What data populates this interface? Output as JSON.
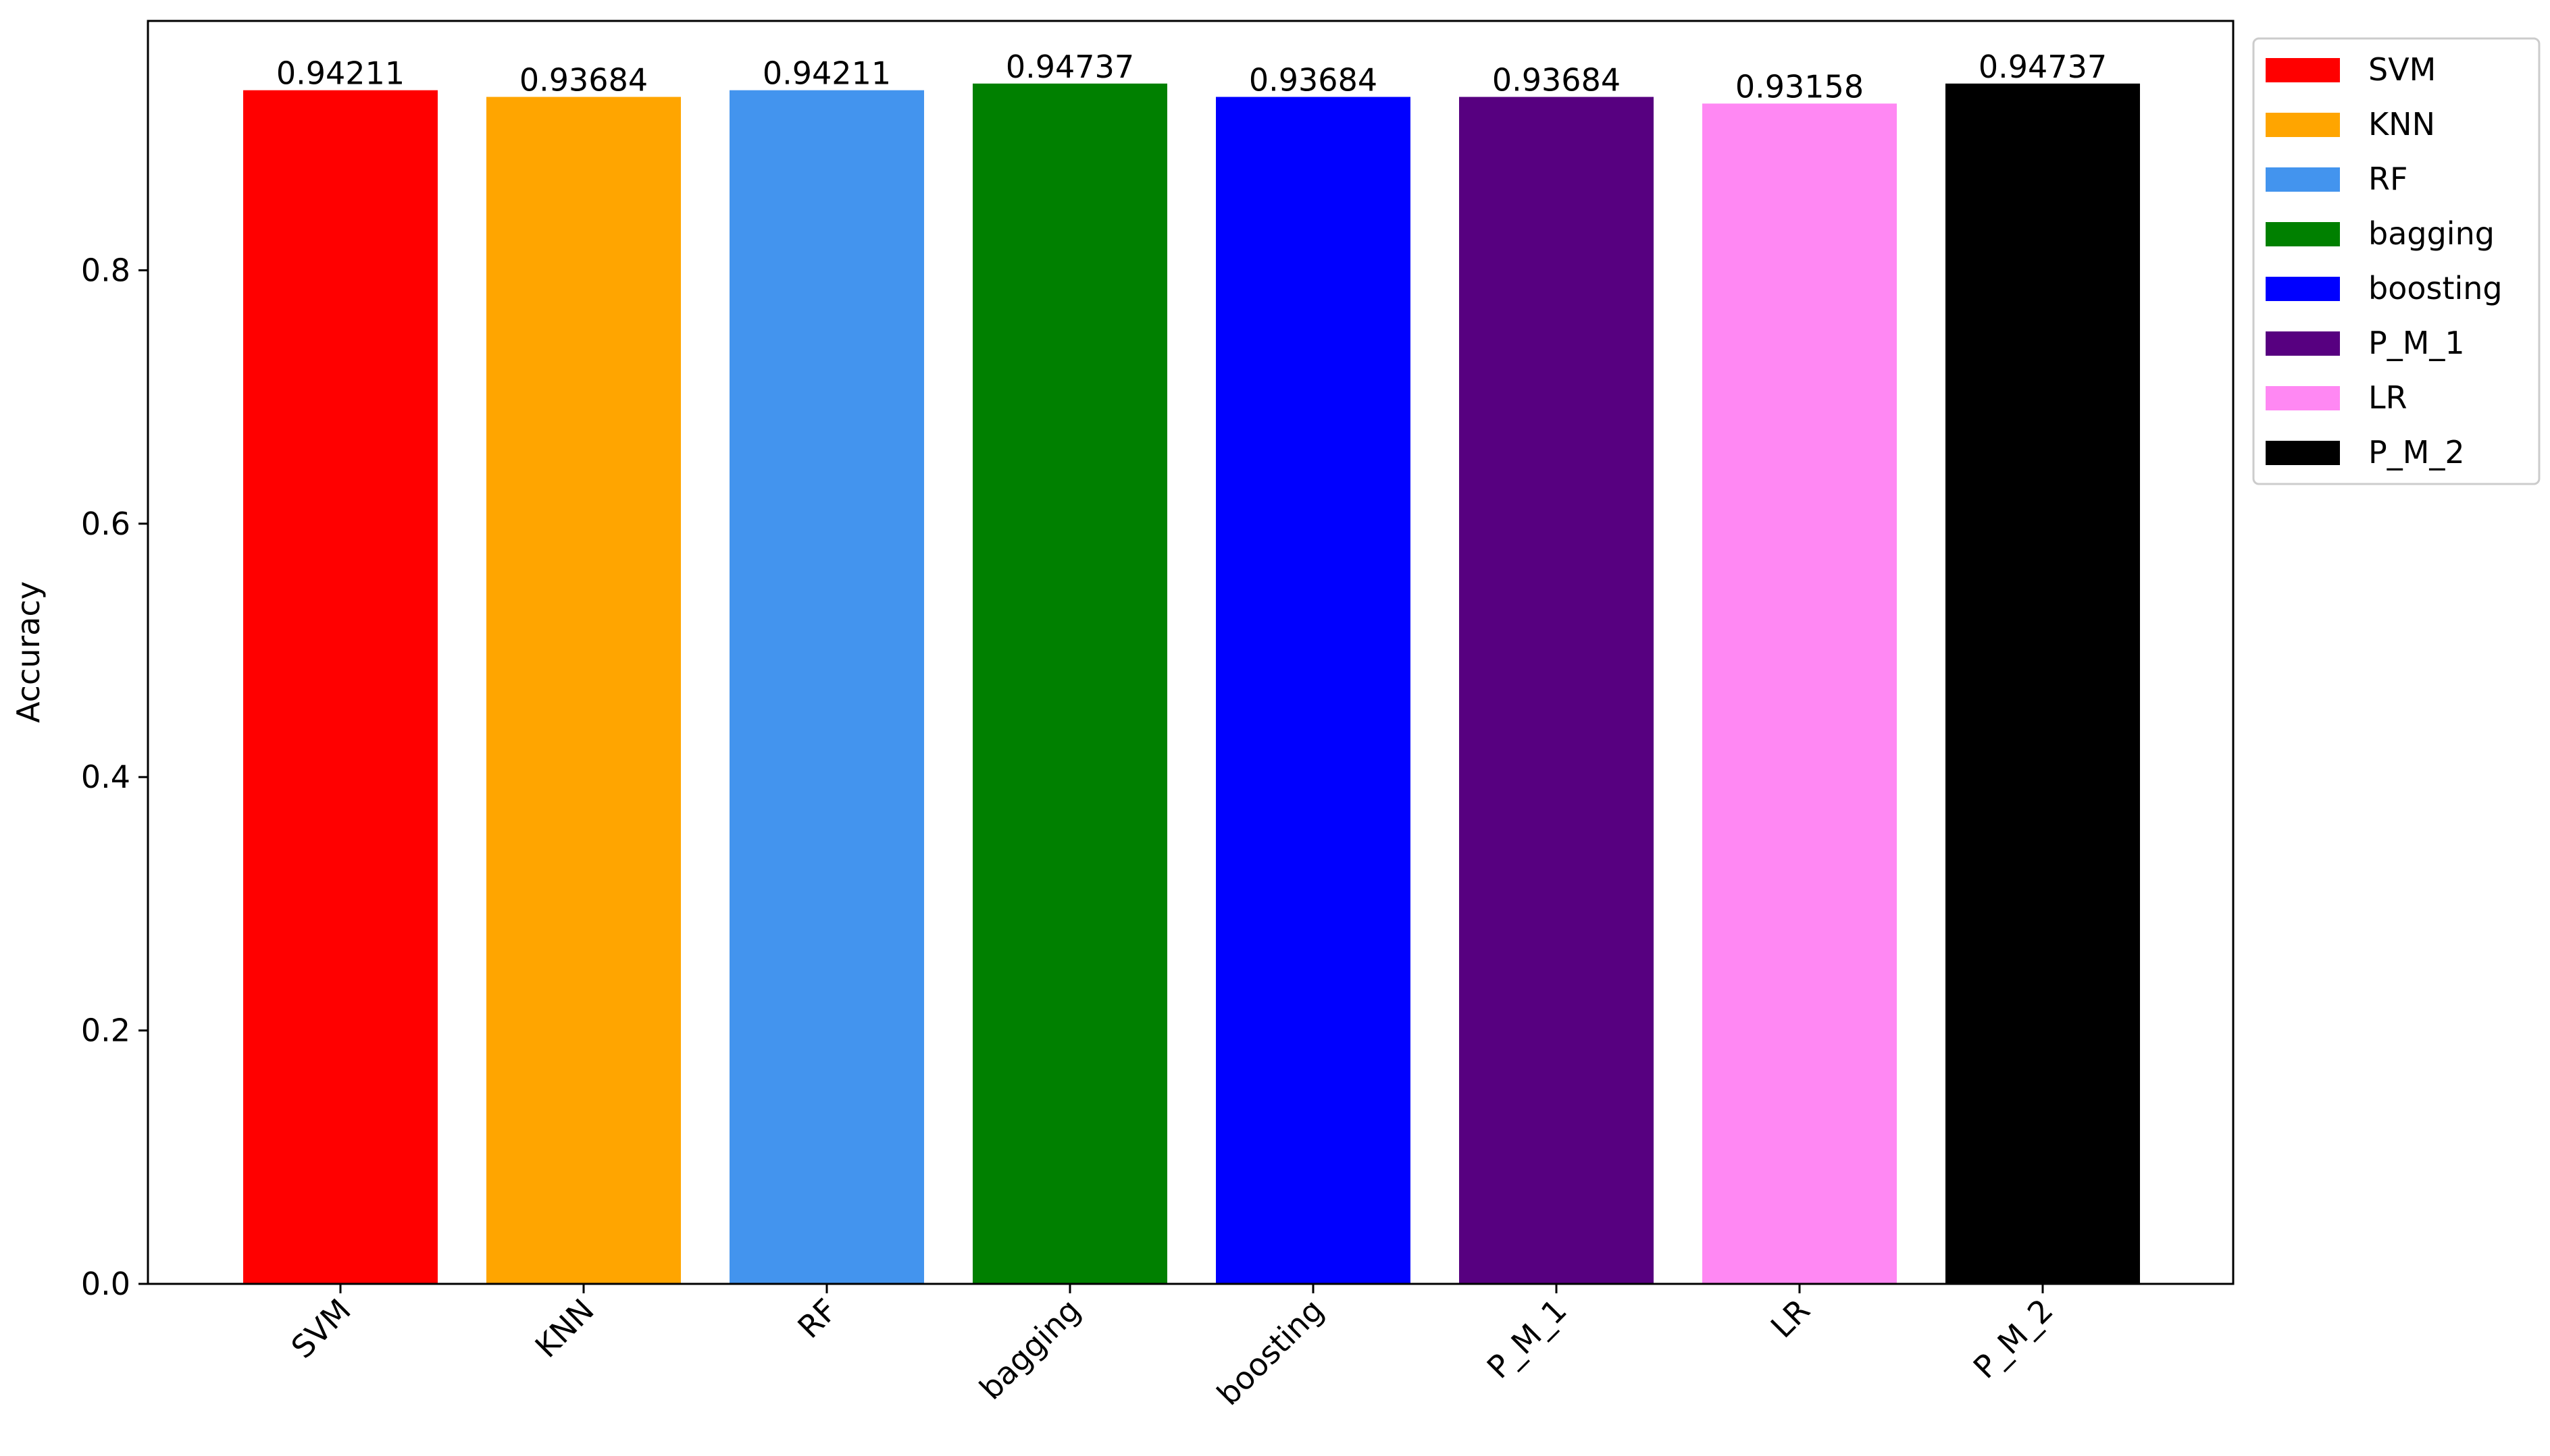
{
  "chart_data": {
    "type": "bar",
    "title": "",
    "xlabel": "",
    "ylabel": "Accuracy",
    "ylim": [
      0,
      1.0
    ],
    "y_ticks": [
      0.0,
      0.2,
      0.4,
      0.6,
      0.8
    ],
    "y_tick_labels": [
      "0.0",
      "0.2",
      "0.4",
      "0.6",
      "0.8"
    ],
    "grid": false,
    "legend_position": "outside right, top",
    "categories": [
      "SVM",
      "KNN",
      "RF",
      "bagging",
      "boosting",
      "P_M_1",
      "LR",
      "P_M_2"
    ],
    "values": [
      0.94211,
      0.93684,
      0.94211,
      0.94737,
      0.93684,
      0.93684,
      0.93158,
      0.94737
    ],
    "value_labels": [
      "0.94211",
      "0.93684",
      "0.94211",
      "0.94737",
      "0.93684",
      "0.93684",
      "0.93158",
      "0.94737"
    ],
    "colors": [
      "#ff0000",
      "#ffa500",
      "#4394ee",
      "#008000",
      "#0000ff",
      "#570080",
      "#ff88f3",
      "#000000"
    ],
    "legend": [
      "SVM",
      "KNN",
      "RF",
      "bagging",
      "boosting",
      "P_M_1",
      "LR",
      "P_M_2"
    ]
  }
}
